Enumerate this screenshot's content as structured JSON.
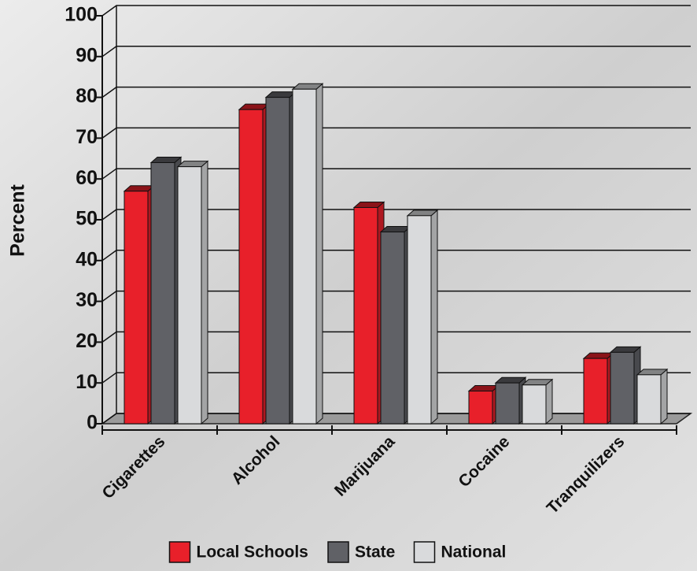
{
  "chart_data": {
    "type": "bar3d",
    "y_label": "Percent",
    "categories": [
      "Cigarettes",
      "Alcohol",
      "Marijuana",
      "Cocaine",
      "Tranquilizers"
    ],
    "series": [
      {
        "name": "Local Schools",
        "color": "#e8202a",
        "values": [
          57,
          77,
          53,
          8,
          16
        ]
      },
      {
        "name": "State",
        "color": "#606166",
        "values": [
          64,
          80,
          47,
          10,
          17.5
        ]
      },
      {
        "name": "National",
        "color": "#d9dadc",
        "values": [
          63,
          82,
          51,
          9.5,
          12
        ]
      }
    ],
    "ylim": [
      0,
      100
    ],
    "yticks": [
      0,
      10,
      20,
      30,
      40,
      50,
      60,
      70,
      80,
      90,
      100
    ],
    "grid": true
  }
}
